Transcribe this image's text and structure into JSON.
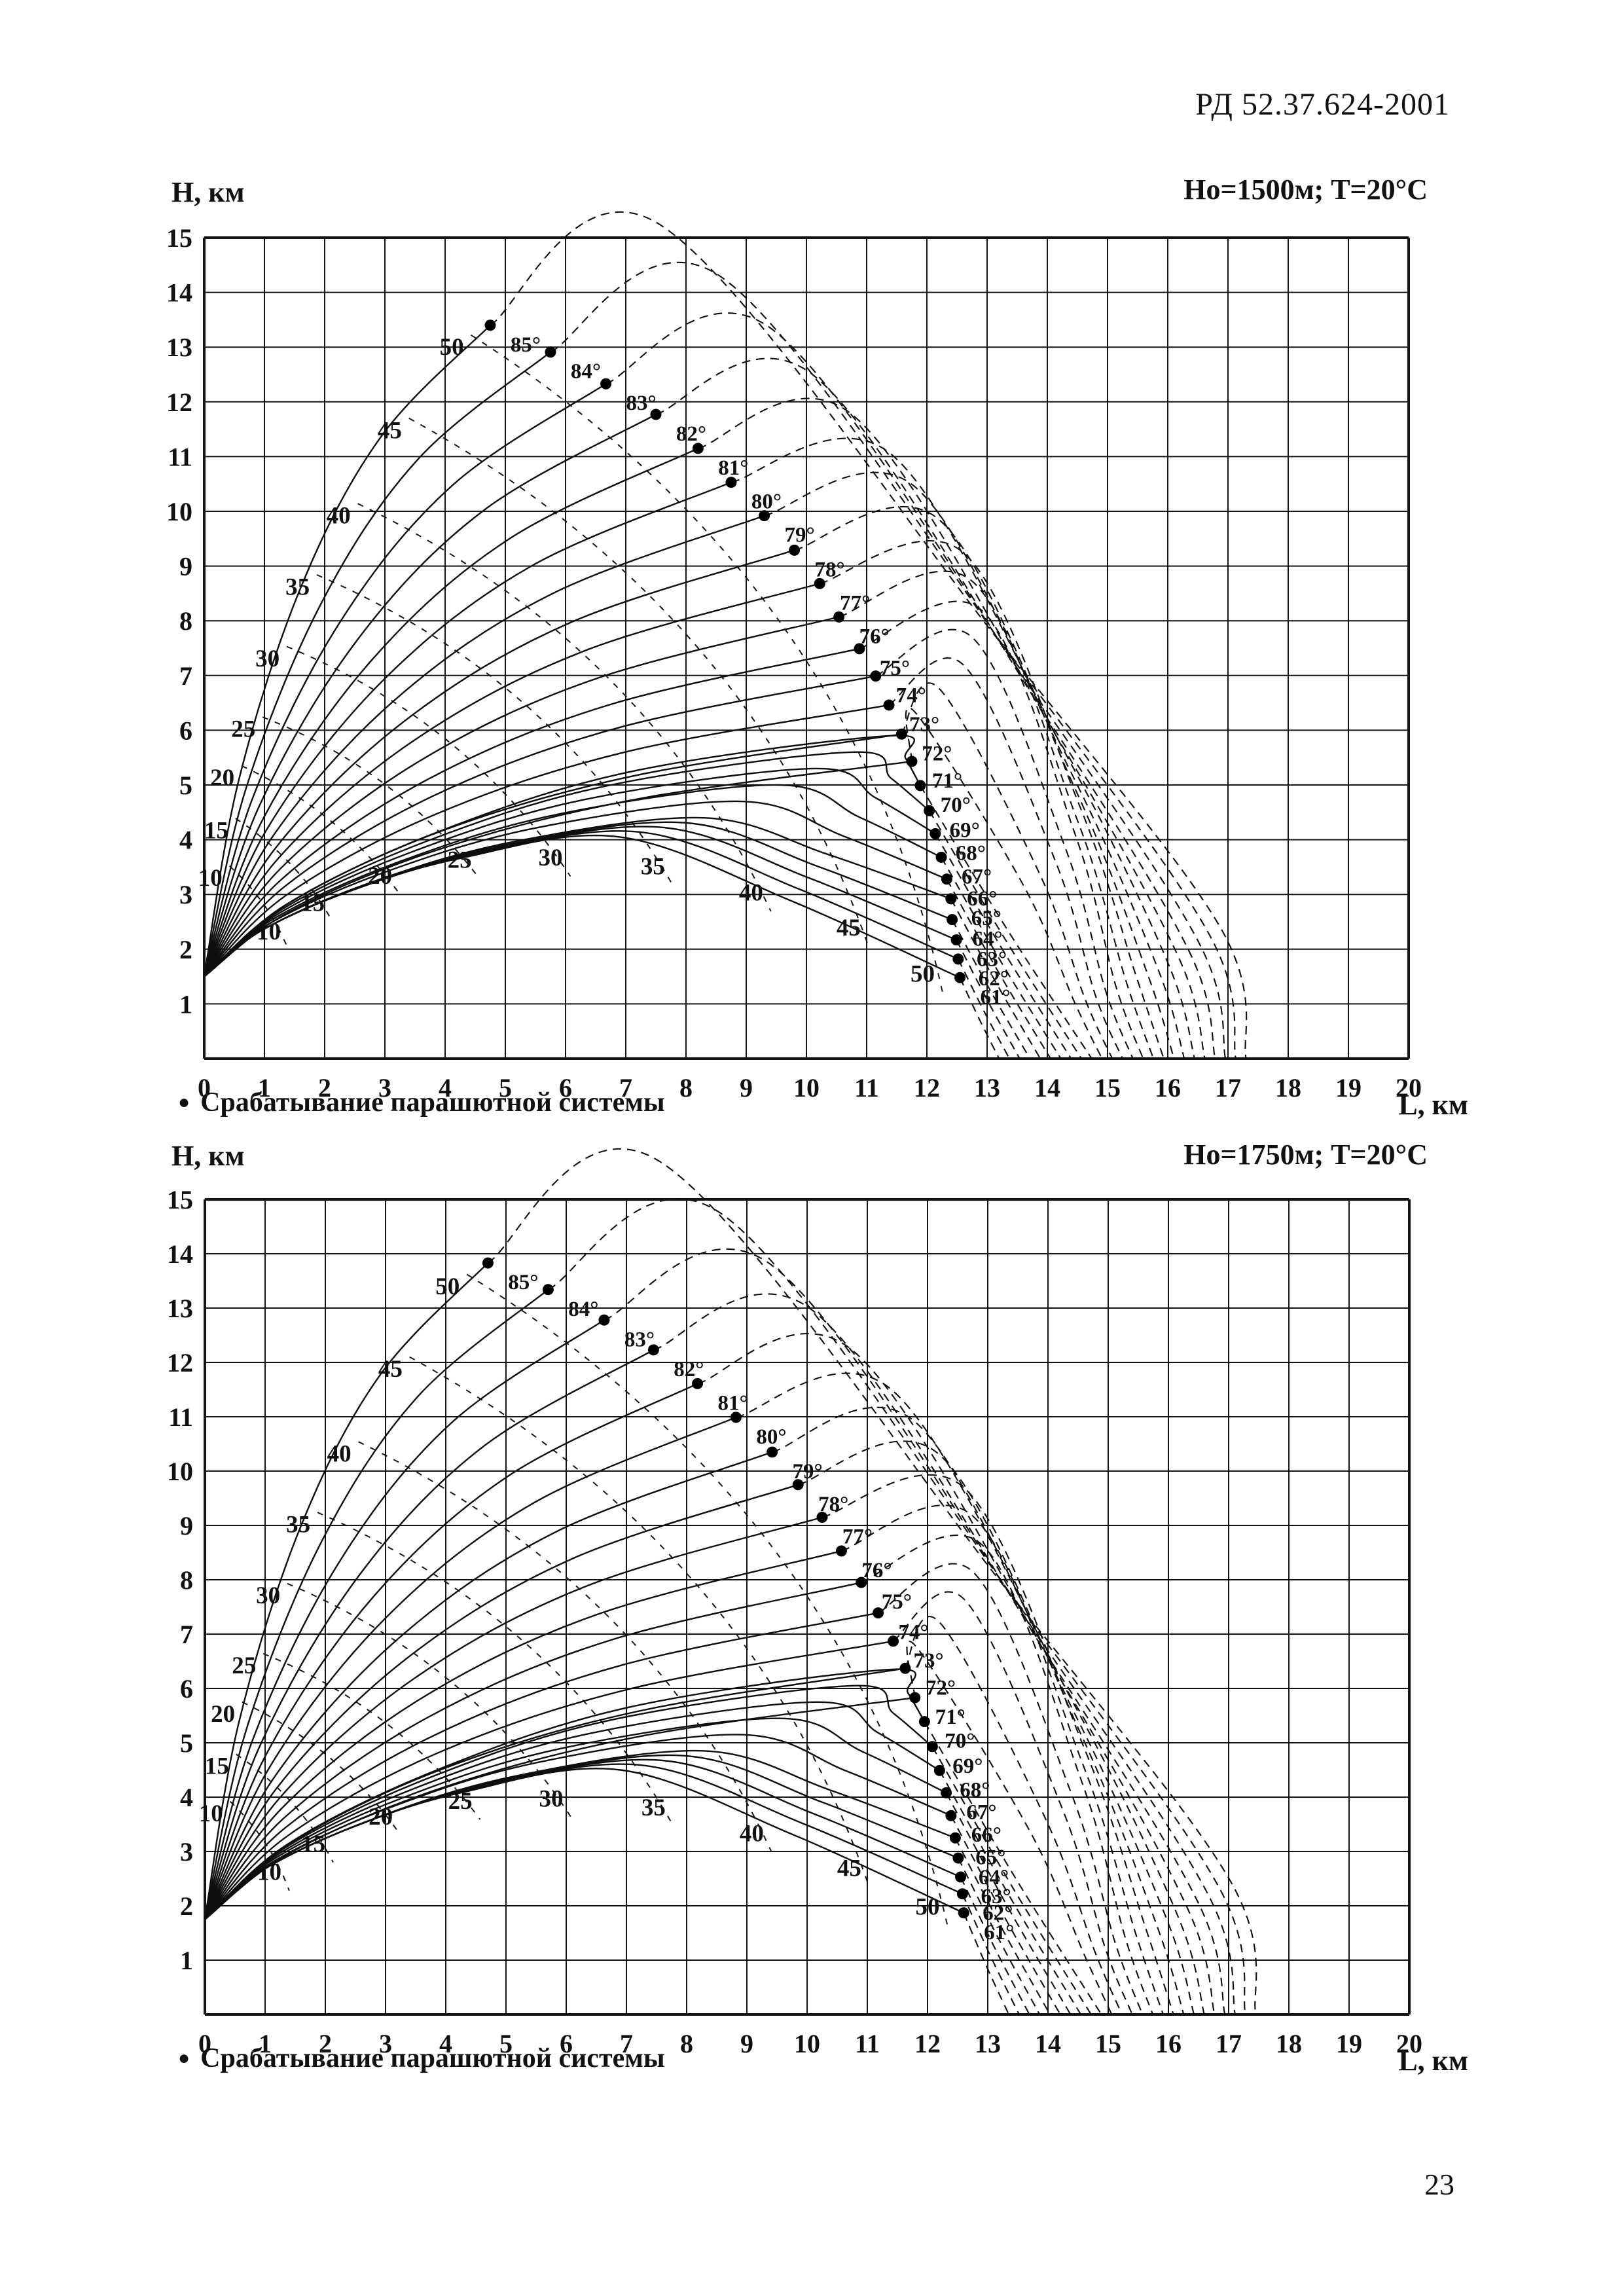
{
  "header": {
    "doc_number": "РД 52.37.624-2001"
  },
  "page_number": "23",
  "axes": {
    "y_axis_label": "Н, км",
    "x_axis_label": "L, км"
  },
  "legend": {
    "marker": "●",
    "text": "Срабатывание парашютной системы"
  },
  "chart_data": [
    {
      "type": "line",
      "title": "Но=1500м;   Т=20°С",
      "launch_height_m": 1500,
      "temperature_c": 20,
      "xlabel": "L, км",
      "ylabel": "Н, км",
      "xlim": [
        0,
        20
      ],
      "ylim": [
        0,
        15
      ],
      "x_ticks": [
        0,
        1,
        2,
        3,
        4,
        5,
        6,
        7,
        8,
        9,
        10,
        11,
        12,
        13,
        14,
        15,
        16,
        17,
        18,
        19,
        20
      ],
      "y_ticks": [
        1,
        2,
        3,
        4,
        5,
        6,
        7,
        8,
        9,
        10,
        11,
        12,
        13,
        14,
        15
      ],
      "grid": true,
      "launch_point_km": {
        "L": 0,
        "H": 1.5
      },
      "deployment_points": [
        [
          85,
          4.75,
          13.4
        ],
        [
          84,
          5.75,
          12.91
        ],
        [
          83,
          6.67,
          12.33
        ],
        [
          82,
          7.5,
          11.77
        ],
        [
          81,
          8.2,
          11.15
        ],
        [
          80,
          8.75,
          10.53
        ],
        [
          79,
          9.3,
          9.92
        ],
        [
          78,
          9.8,
          9.29
        ],
        [
          77,
          10.22,
          8.68
        ],
        [
          76,
          10.54,
          8.07
        ],
        [
          75,
          10.88,
          7.49
        ],
        [
          74,
          11.15,
          6.99
        ],
        [
          73,
          11.37,
          6.46
        ],
        [
          72,
          11.58,
          5.93
        ],
        [
          71,
          11.75,
          5.43
        ],
        [
          70,
          11.89,
          4.99
        ],
        [
          69,
          12.04,
          4.53
        ],
        [
          68,
          12.14,
          4.11
        ],
        [
          67,
          12.24,
          3.68
        ],
        [
          66,
          12.33,
          3.28
        ],
        [
          65,
          12.4,
          2.92
        ],
        [
          64,
          12.42,
          2.54
        ],
        [
          63,
          12.49,
          2.17
        ],
        [
          62,
          12.52,
          1.82
        ],
        [
          61,
          12.55,
          1.48
        ]
      ],
      "time_isolines_s": [
        {
          "t": 10,
          "upper": [
            0.1,
            3.3
          ],
          "lower": [
            1.07,
            2.32
          ]
        },
        {
          "t": 15,
          "upper": [
            0.2,
            4.17
          ],
          "lower": [
            1.8,
            2.84
          ]
        },
        {
          "t": 20,
          "upper": [
            0.3,
            5.13
          ],
          "lower": [
            2.92,
            3.34
          ]
        },
        {
          "t": 25,
          "upper": [
            0.65,
            6.02
          ],
          "lower": [
            4.24,
            3.63
          ]
        },
        {
          "t": 30,
          "upper": [
            1.05,
            7.31
          ],
          "lower": [
            5.75,
            3.67
          ]
        },
        {
          "t": 35,
          "upper": [
            1.55,
            8.62
          ],
          "lower": [
            7.45,
            3.51
          ]
        },
        {
          "t": 40,
          "upper": [
            2.23,
            9.92
          ],
          "lower": [
            9.08,
            3.03
          ]
        },
        {
          "t": 45,
          "upper": [
            3.08,
            11.48
          ],
          "lower": [
            10.7,
            2.39
          ]
        },
        {
          "t": 50,
          "upper": [
            4.11,
            13.0
          ],
          "lower": [
            11.93,
            1.55
          ]
        }
      ],
      "apex_anchors": [
        [
          61,
          6.9,
          4.05
        ],
        [
          65,
          8.3,
          4.4
        ],
        [
          70,
          11.4,
          5.9
        ],
        [
          73,
          12.6,
          7.2
        ],
        [
          75,
          12.9,
          8.2
        ],
        [
          77,
          12.6,
          9.25
        ],
        [
          80,
          11.4,
          11.05
        ],
        [
          82,
          10.1,
          12.5
        ],
        [
          83,
          9.4,
          13.35
        ],
        [
          84,
          8.56,
          14.3
        ],
        [
          85,
          7.55,
          15.25
        ]
      ],
      "landing_L_km": {
        "angle61": 13.2,
        "angle85": 17.3
      }
    },
    {
      "type": "line",
      "title": "Но=1750м;   Т=20°С",
      "launch_height_m": 1750,
      "temperature_c": 20,
      "xlabel": "L, км",
      "ylabel": "Н, км",
      "xlim": [
        0,
        20
      ],
      "ylim": [
        0,
        15
      ],
      "x_ticks": [
        0,
        1,
        2,
        3,
        4,
        5,
        6,
        7,
        8,
        9,
        10,
        11,
        12,
        13,
        14,
        15,
        16,
        17,
        18,
        19,
        20
      ],
      "y_ticks": [
        1,
        2,
        3,
        4,
        5,
        6,
        7,
        8,
        9,
        10,
        11,
        12,
        13,
        14,
        15
      ],
      "grid": true,
      "launch_point_km": {
        "L": 0,
        "H": 1.75
      },
      "deployment_points": [
        [
          85,
          4.7,
          13.83
        ],
        [
          84,
          5.7,
          13.34
        ],
        [
          83,
          6.63,
          12.78
        ],
        [
          82,
          7.45,
          12.23
        ],
        [
          81,
          8.18,
          11.61
        ],
        [
          80,
          8.82,
          10.99
        ],
        [
          79,
          9.42,
          10.35
        ],
        [
          78,
          9.85,
          9.75
        ],
        [
          77,
          10.25,
          9.15
        ],
        [
          76,
          10.57,
          8.53
        ],
        [
          75,
          10.9,
          7.95
        ],
        [
          74,
          11.18,
          7.39
        ],
        [
          73,
          11.43,
          6.87
        ],
        [
          72,
          11.63,
          6.37
        ],
        [
          71,
          11.79,
          5.83
        ],
        [
          70,
          11.95,
          5.39
        ],
        [
          69,
          12.08,
          4.93
        ],
        [
          68,
          12.2,
          4.49
        ],
        [
          67,
          12.31,
          4.08
        ],
        [
          66,
          12.39,
          3.66
        ],
        [
          65,
          12.46,
          3.25
        ],
        [
          64,
          12.51,
          2.88
        ],
        [
          63,
          12.55,
          2.53
        ],
        [
          62,
          12.58,
          2.22
        ],
        [
          61,
          12.6,
          1.87
        ]
      ],
      "time_isolines_s": [
        {
          "t": 10,
          "upper": [
            0.1,
            3.7
          ],
          "lower": [
            1.07,
            2.62
          ]
        },
        {
          "t": 15,
          "upper": [
            0.2,
            4.57
          ],
          "lower": [
            1.8,
            3.14
          ]
        },
        {
          "t": 20,
          "upper": [
            0.3,
            5.53
          ],
          "lower": [
            2.92,
            3.64
          ]
        },
        {
          "t": 25,
          "upper": [
            0.65,
            6.42
          ],
          "lower": [
            4.24,
            3.93
          ]
        },
        {
          "t": 30,
          "upper": [
            1.05,
            7.71
          ],
          "lower": [
            5.75,
            3.97
          ]
        },
        {
          "t": 35,
          "upper": [
            1.55,
            9.02
          ],
          "lower": [
            7.45,
            3.81
          ]
        },
        {
          "t": 40,
          "upper": [
            2.23,
            10.32
          ],
          "lower": [
            9.08,
            3.33
          ]
        },
        {
          "t": 45,
          "upper": [
            3.08,
            11.88
          ],
          "lower": [
            10.7,
            2.69
          ]
        },
        {
          "t": 50,
          "upper": [
            4.03,
            13.4
          ],
          "lower": [
            12.0,
            1.98
          ]
        }
      ],
      "apex_anchors": [
        [
          61,
          6.9,
          4.5
        ],
        [
          65,
          8.3,
          4.85
        ],
        [
          70,
          11.4,
          6.35
        ],
        [
          73,
          12.6,
          7.65
        ],
        [
          75,
          12.9,
          8.65
        ],
        [
          77,
          12.6,
          9.7
        ],
        [
          80,
          11.4,
          11.5
        ],
        [
          82,
          10.1,
          12.95
        ],
        [
          83,
          9.4,
          13.8
        ],
        [
          84,
          8.56,
          14.75
        ],
        [
          85,
          7.55,
          15.7
        ]
      ],
      "landing_L_km": {
        "angle61": 13.35,
        "angle85": 17.45
      }
    }
  ]
}
